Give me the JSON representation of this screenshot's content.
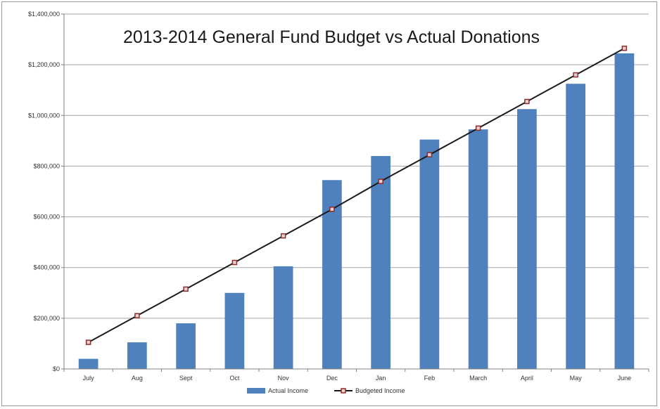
{
  "chart_data": {
    "type": "bar",
    "title": "2013-2014 General Fund Budget vs Actual Donations",
    "xlabel": "",
    "ylabel": "",
    "categories": [
      "July",
      "Aug",
      "Sept",
      "Oct",
      "Nov",
      "Dec",
      "Jan",
      "Feb",
      "March",
      "April",
      "May",
      "June"
    ],
    "series": [
      {
        "name": "Actual Income",
        "type": "bar",
        "color": "#4F81BD",
        "values": [
          40000,
          105000,
          180000,
          300000,
          405000,
          745000,
          840000,
          905000,
          945000,
          1025000,
          1125000,
          1245000
        ]
      },
      {
        "name": "Budgeted Income",
        "type": "line",
        "color": "#1a1a1a",
        "marker_color": "#8B2E2E",
        "values": [
          105000,
          210000,
          315000,
          420000,
          525000,
          630000,
          740000,
          845000,
          950000,
          1055000,
          1160000,
          1265000
        ]
      }
    ],
    "ylim": [
      0,
      1400000
    ],
    "yticks": [
      0,
      200000,
      400000,
      600000,
      800000,
      1000000,
      1200000,
      1400000
    ],
    "ytick_labels": [
      "$0",
      "$200,000",
      "$400,000",
      "$600,000",
      "$800,000",
      "$1,000,000",
      "$1,200,000",
      "$1,400,000"
    ],
    "grid": true,
    "legend": "bottom"
  }
}
